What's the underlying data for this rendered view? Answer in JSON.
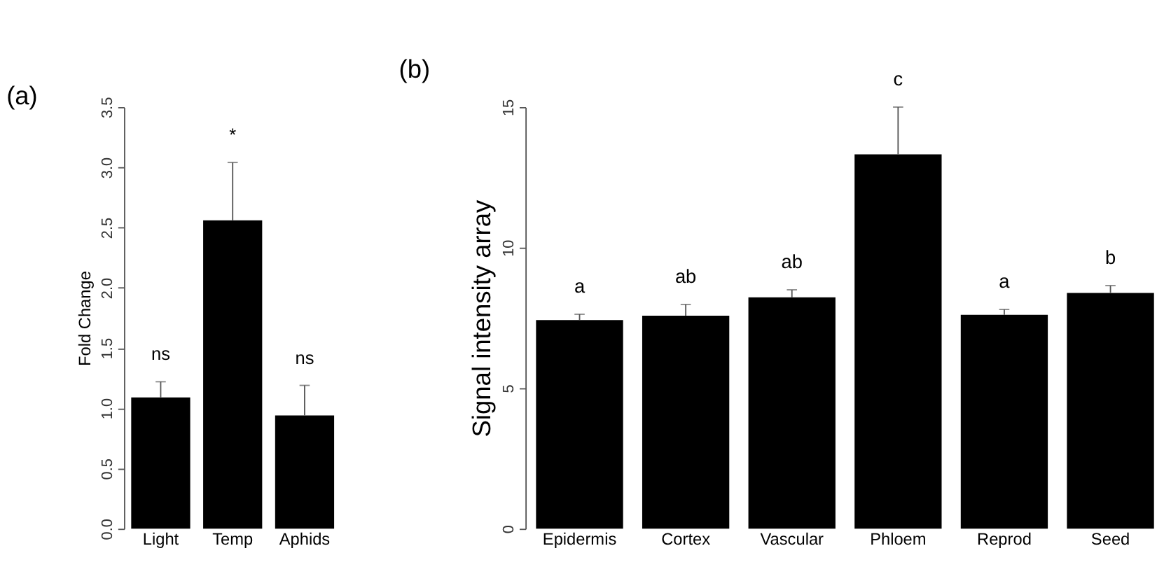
{
  "chart_data": [
    {
      "type": "bar",
      "title": "(a)",
      "ylabel": "Fold Change",
      "categories": [
        "Light",
        "Temp",
        "Aphids"
      ],
      "values": [
        1.09,
        2.56,
        0.94
      ],
      "color": "#000000",
      "errors": [
        [
          1.09,
          1.22
        ],
        [
          2.56,
          3.04
        ],
        [
          0.94,
          1.19
        ]
      ],
      "ylim": [
        0,
        3.5
      ],
      "yticks": [
        {
          "value": 0,
          "label": "0.0"
        },
        0.5,
        {
          "value": 1,
          "label": "1.0"
        },
        1.5,
        {
          "value": 2,
          "label": "2.0"
        },
        2.5,
        {
          "value": 3,
          "label": "3.0"
        },
        3.5
      ],
      "grid": false,
      "annotations": [
        "ns",
        "*",
        "ns"
      ]
    },
    {
      "type": "bar",
      "title": "(b)",
      "ylabel": "Signal intensity array",
      "categories": [
        "Epidermis",
        "Cortex",
        "Vascular",
        "Phloem",
        "Reprod",
        "Seed"
      ],
      "values": [
        7.42,
        7.58,
        8.23,
        13.32,
        7.61,
        8.39
      ],
      "color": "#000000",
      "errors": [
        [
          7.42,
          7.63
        ],
        [
          7.58,
          7.98
        ],
        [
          8.23,
          8.5
        ],
        [
          13.32,
          15
        ],
        [
          7.61,
          7.8
        ],
        [
          8.39,
          8.65
        ]
      ],
      "ylim": [
        0,
        15
      ],
      "yticks": [
        0,
        5,
        10,
        15
      ],
      "grid": false,
      "annotations": [
        "a",
        "ab",
        "ab",
        "c",
        "a",
        "b"
      ]
    }
  ]
}
